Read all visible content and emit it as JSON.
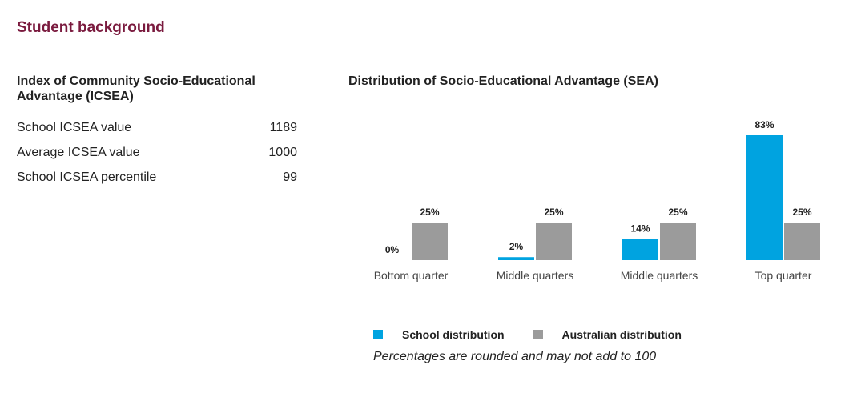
{
  "section": {
    "title": "Student background"
  },
  "icsea": {
    "heading": "Index of Community Socio-Educational Advantage (ICSEA)",
    "rows": [
      {
        "label": "School ICSEA value",
        "value": "1189"
      },
      {
        "label": "Average ICSEA value",
        "value": "1000"
      },
      {
        "label": "School ICSEA percentile",
        "value": "99"
      }
    ]
  },
  "colors": {
    "school": "#00a3e0",
    "australian": "#9b9b9b",
    "title": "#7a1a3e"
  },
  "chart_data": {
    "type": "bar",
    "title": "Distribution of Socio-Educational Advantage (SEA)",
    "categories": [
      "Bottom quarter",
      "Middle quarters",
      "Middle quarters",
      "Top quarter"
    ],
    "series": [
      {
        "name": "School distribution",
        "values": [
          0,
          2,
          14,
          83
        ],
        "labels": [
          "0%",
          "2%",
          "14%",
          "83%"
        ]
      },
      {
        "name": "Australian distribution",
        "values": [
          25,
          25,
          25,
          25
        ],
        "labels": [
          "25%",
          "25%",
          "25%",
          "25%"
        ]
      }
    ],
    "ylim": [
      0,
      83
    ],
    "grid": false,
    "legend": "bottom"
  },
  "legend": {
    "school_label": "School distribution",
    "australian_label": "Australian distribution"
  },
  "note": "Percentages are rounded and may not add to 100"
}
